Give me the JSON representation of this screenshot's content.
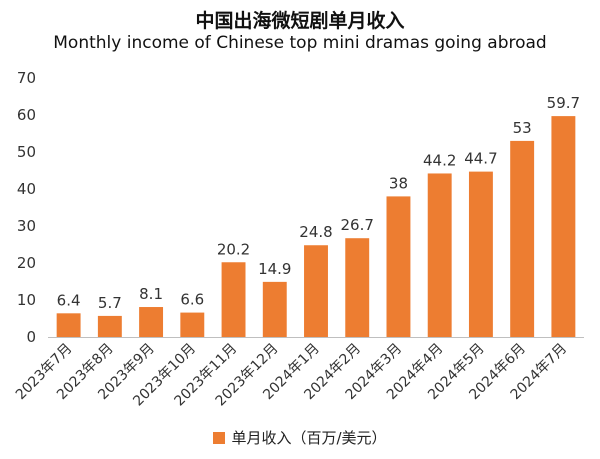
{
  "chart_data": {
    "type": "bar",
    "title": "中国出海微短剧单月收入",
    "subtitle": "Monthly income of Chinese top mini dramas going abroad",
    "categories": [
      "2023年7月",
      "2023年8月",
      "2023年9月",
      "2023年10月",
      "2023年11月",
      "2023年12月",
      "2024年1月",
      "2024年2月",
      "2024年3月",
      "2024年4月",
      "2024年5月",
      "2024年6月",
      "2024年7月"
    ],
    "series": [
      {
        "name": "单月收入（百万/美元）",
        "values": [
          6.4,
          5.7,
          8.1,
          6.6,
          20.2,
          14.9,
          24.8,
          26.7,
          38,
          44.2,
          44.7,
          53,
          59.7
        ]
      }
    ],
    "ylim": [
      0,
      70
    ],
    "yticks": [
      0,
      10,
      20,
      30,
      40,
      50,
      60,
      70
    ],
    "grid": false,
    "legend": "bottom",
    "bar_color": "#ED7D31"
  }
}
